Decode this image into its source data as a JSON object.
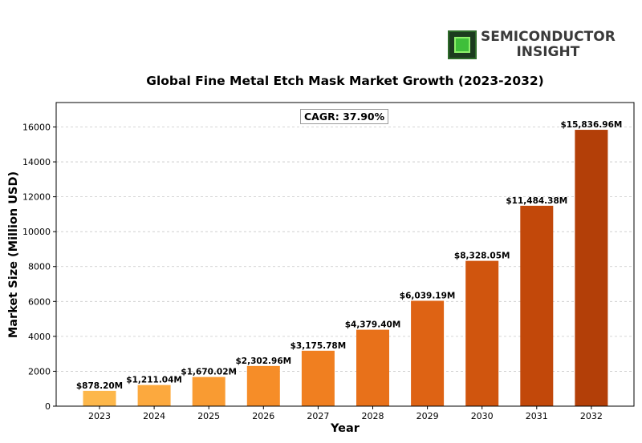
{
  "brand": {
    "line1": "SEMICONDUCTOR",
    "line2": "INSIGHT"
  },
  "annotation": "CAGR: 37.90%",
  "chart_data": {
    "type": "bar",
    "title": "Global Fine Metal Etch Mask Market Growth (2023-2032)",
    "xlabel": "Year",
    "ylabel": "Market Size (Million USD)",
    "categories": [
      "2023",
      "2024",
      "2025",
      "2026",
      "2027",
      "2028",
      "2029",
      "2030",
      "2031",
      "2032"
    ],
    "values": [
      878.2,
      1211.04,
      1670.02,
      2302.96,
      3175.78,
      4379.4,
      6039.19,
      8328.05,
      11484.38,
      15836.96
    ],
    "data_labels": [
      "$878.20M",
      "$1,211.04M",
      "$1,670.02M",
      "$2,302.96M",
      "$3,175.78M",
      "$4,379.40M",
      "$6,039.19M",
      "$8,328.05M",
      "$11,484.38M",
      "$15,836.96M"
    ],
    "colors": [
      "#fdb74a",
      "#fca93e",
      "#f99b32",
      "#f68d28",
      "#f07f20",
      "#e8711a",
      "#de6314",
      "#d0550e",
      "#c2480a",
      "#b33f08"
    ],
    "ylim": [
      0,
      17400
    ],
    "yticks": [
      0,
      2000,
      4000,
      6000,
      8000,
      10000,
      12000,
      14000,
      16000
    ],
    "grid": true
  }
}
